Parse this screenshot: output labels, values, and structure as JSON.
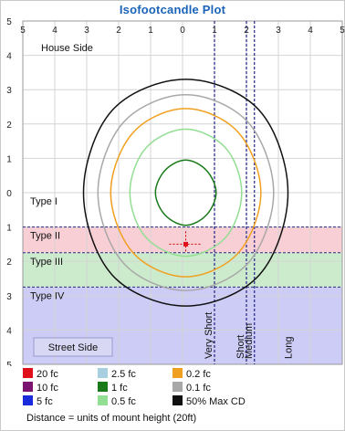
{
  "chart_data": {
    "type": "isofootcandle-plot",
    "title": "Isofootcandle Plot",
    "x_ticks": [
      "5",
      "4",
      "3",
      "2",
      "1",
      "0",
      "1",
      "2",
      "3",
      "4",
      "5"
    ],
    "y_ticks": [
      "5",
      "4",
      "3",
      "2",
      "1",
      "0",
      "1",
      "2",
      "3",
      "4",
      "5"
    ],
    "xlim": [
      -5,
      5
    ],
    "ylim": [
      -5,
      5
    ],
    "grid": true,
    "side_labels": {
      "house": "House Side",
      "street": "Street Side"
    },
    "zones": [
      {
        "label": "Type I",
        "from": 0,
        "to": -1,
        "color": "#ffffff"
      },
      {
        "label": "Type II",
        "from": -1,
        "to": -1.75,
        "color": "#f8c7cf"
      },
      {
        "label": "Type III",
        "from": -1.75,
        "to": -2.75,
        "color": "#c3e8c4"
      },
      {
        "label": "Type IV",
        "from": -2.75,
        "to": -5,
        "color": "#c3c3f5"
      }
    ],
    "distance_lines": [
      {
        "label": "Very Short",
        "x": 1
      },
      {
        "label": "Short",
        "x": 2
      },
      {
        "label": "Medium",
        "x": 2.25
      },
      {
        "label": "Long",
        "x": 3.5
      }
    ],
    "isolines": [
      {
        "label": "20 fc",
        "color": "#e0101a",
        "points": [
          [
            0.1,
            -1.5
          ]
        ]
      },
      {
        "label": "10 fc",
        "color": "#7a1470",
        "points": []
      },
      {
        "label": "5 fc",
        "color": "#1a2bdc",
        "points": []
      },
      {
        "label": "2.5 fc",
        "color": "#a8cfe0",
        "points": []
      },
      {
        "label": "1 fc",
        "color": "#1a7a1a",
        "points": [
          [
            0.1,
            0.95
          ],
          [
            0.75,
            0.65
          ],
          [
            1.05,
            0
          ],
          [
            0.75,
            -0.65
          ],
          [
            0.1,
            -0.95
          ],
          [
            -0.55,
            -0.65
          ],
          [
            -0.85,
            0
          ],
          [
            -0.55,
            0.65
          ]
        ]
      },
      {
        "label": "0.5 fc",
        "color": "#92de92",
        "points": [
          [
            0.1,
            1.85
          ],
          [
            1.35,
            1.3
          ],
          [
            1.85,
            0
          ],
          [
            1.35,
            -1.3
          ],
          [
            0.1,
            -1.85
          ],
          [
            -1.15,
            -1.3
          ],
          [
            -1.65,
            0
          ],
          [
            -1.15,
            1.3
          ]
        ]
      },
      {
        "label": "0.2 fc",
        "color": "#f0a020",
        "points": [
          [
            0.1,
            2.45
          ],
          [
            1.75,
            1.75
          ],
          [
            2.45,
            0
          ],
          [
            1.75,
            -1.75
          ],
          [
            0.1,
            -2.45
          ],
          [
            -1.55,
            -1.75
          ],
          [
            -2.25,
            0
          ],
          [
            -1.55,
            1.75
          ]
        ]
      },
      {
        "label": "0.1 fc",
        "color": "#a8a8a8",
        "points": [
          [
            0.1,
            2.85
          ],
          [
            2.05,
            2.05
          ],
          [
            2.85,
            0
          ],
          [
            2.05,
            -2.05
          ],
          [
            0.1,
            -2.85
          ],
          [
            -1.85,
            -2.05
          ],
          [
            -2.65,
            0
          ],
          [
            -1.85,
            2.05
          ]
        ]
      },
      {
        "label": "50% Max CD",
        "color": "#111111",
        "points": [
          [
            0.1,
            3.3
          ],
          [
            2.4,
            2.4
          ],
          [
            3.3,
            0
          ],
          [
            2.4,
            -2.4
          ],
          [
            0.1,
            -3.3
          ],
          [
            -2.2,
            -2.4
          ],
          [
            -3.1,
            0
          ],
          [
            -2.2,
            2.4
          ]
        ]
      }
    ],
    "fixture_marker": [
      0.1,
      -1.5
    ],
    "legend_placement": "bottom",
    "footer": "Distance = units of mount height (20ft)"
  }
}
